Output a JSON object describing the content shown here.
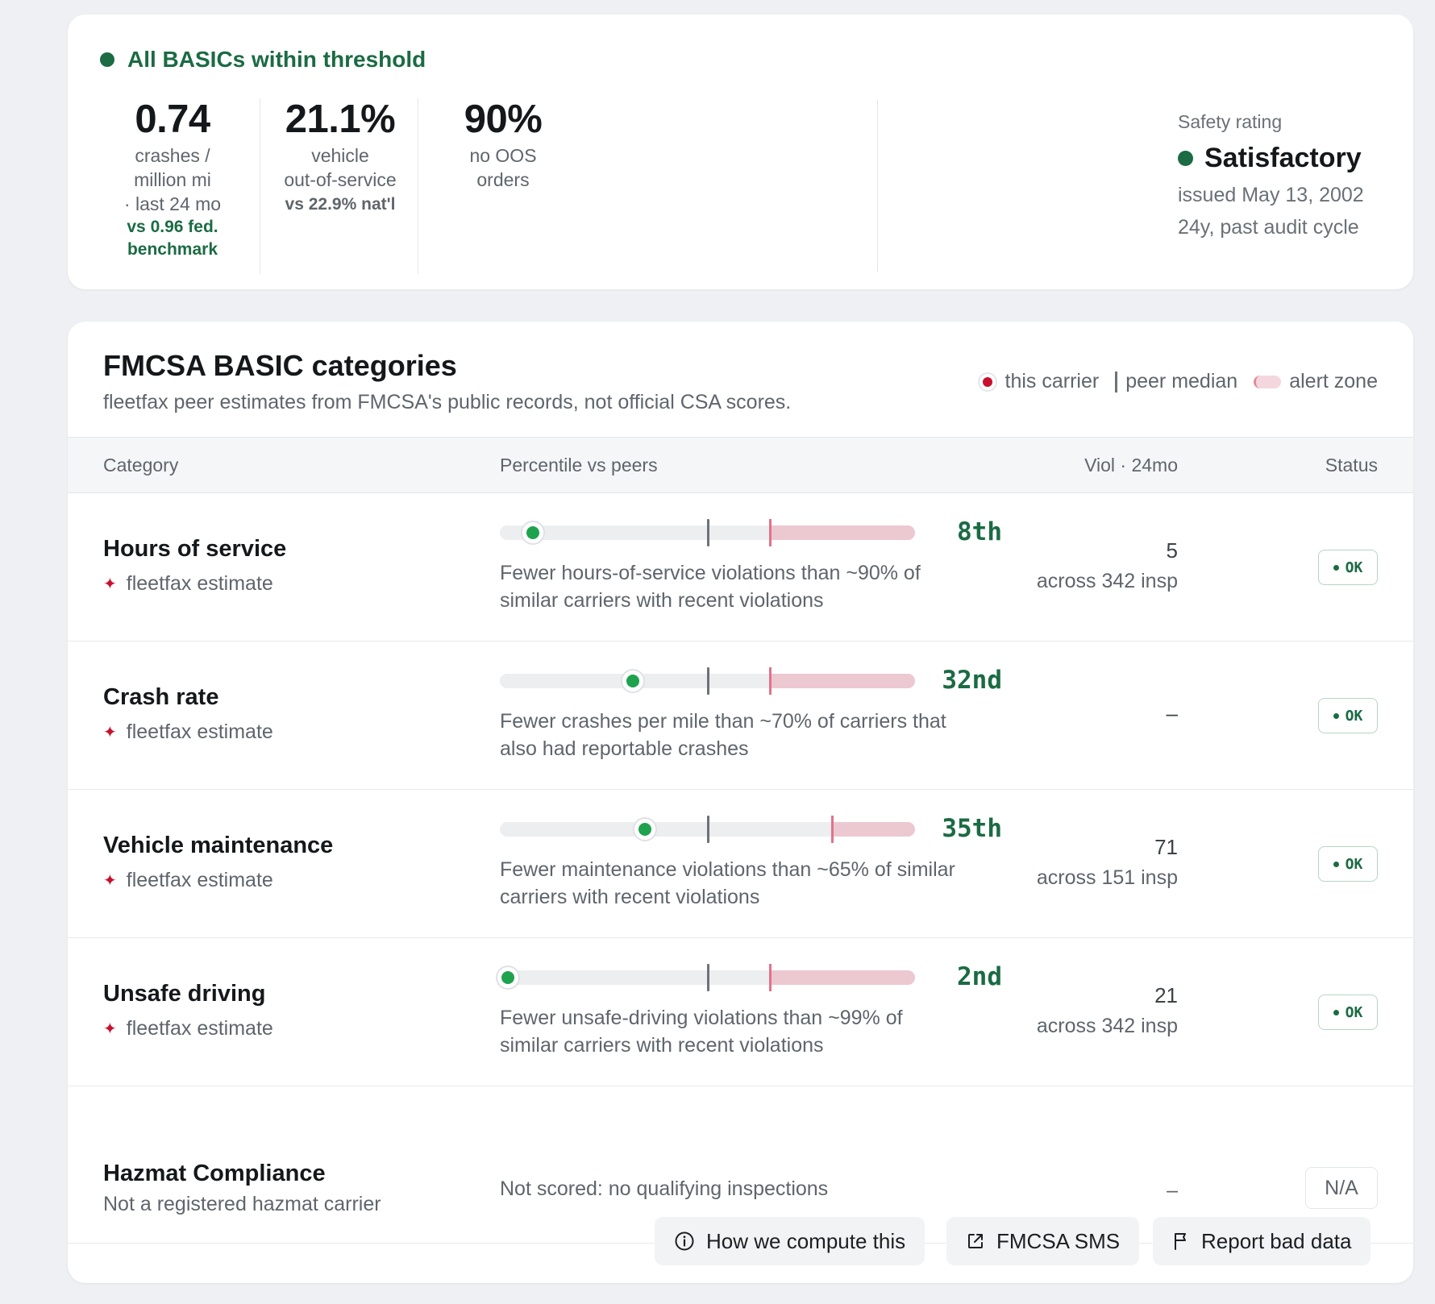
{
  "summary": {
    "status": "All BASICs within threshold",
    "stats": [
      {
        "value": "0.74",
        "label": [
          "crashes /",
          "million mi",
          "· last 24 mo"
        ],
        "compare": [
          "vs 0.96 fed.",
          "benchmark"
        ]
      },
      {
        "value": "21.1%",
        "label": [
          "vehicle",
          "out-of-service"
        ],
        "compare": [
          "vs 22.9% nat'l"
        ]
      },
      {
        "value": "90%",
        "label": [
          "no OOS",
          "orders"
        ],
        "compare": []
      }
    ],
    "safety": {
      "caption": "Safety rating",
      "rating": "Satisfactory",
      "issued": "issued May 13, 2002",
      "age": "24y, past audit cycle"
    }
  },
  "basics": {
    "title": "FMCSA BASIC categories",
    "subtitle": "fleetfax peer estimates from FMCSA's public records, not official CSA scores.",
    "legend": {
      "carrier": "this carrier",
      "median": "peer median",
      "alert": "alert zone"
    },
    "columns": {
      "category": "Category",
      "percentile": "Percentile vs peers",
      "viol": "Viol · 24mo",
      "status": "Status"
    },
    "rows": [
      {
        "name": "Hours of service",
        "estimate": "fleetfax estimate",
        "percentile": 8,
        "percentile_label": "8th",
        "median": 50,
        "alert_threshold": 65,
        "desc": [
          "Fewer hours-of-service violations than ~90% of",
          "similar carriers with recent violations"
        ],
        "viol_count": "5",
        "viol_insp": "across 342 insp",
        "status": "OK"
      },
      {
        "name": "Crash rate",
        "estimate": "fleetfax estimate",
        "percentile": 32,
        "percentile_label": "32nd",
        "median": 50,
        "alert_threshold": 65,
        "desc": [
          "Fewer crashes per mile than ~70% of carriers that",
          "also had reportable crashes"
        ],
        "viol_count": "–",
        "viol_insp": "",
        "status": "OK"
      },
      {
        "name": "Vehicle maintenance",
        "estimate": "fleetfax estimate",
        "percentile": 35,
        "percentile_label": "35th",
        "median": 50,
        "alert_threshold": 80,
        "desc": [
          "Fewer maintenance violations than ~65% of similar",
          "carriers with recent violations"
        ],
        "viol_count": "71",
        "viol_insp": "across 151 insp",
        "status": "OK"
      },
      {
        "name": "Unsafe driving",
        "estimate": "fleetfax estimate",
        "percentile": 2,
        "percentile_label": "2nd",
        "median": 50,
        "alert_threshold": 65,
        "desc": [
          "Fewer unsafe-driving violations than ~99% of",
          "similar carriers with recent violations"
        ],
        "viol_count": "21",
        "viol_insp": "across 342 insp",
        "status": "OK"
      }
    ],
    "hazmat": {
      "name": "Hazmat Compliance",
      "sub": "Not a registered hazmat carrier",
      "desc": "Not scored: no qualifying inspections",
      "viol": "–",
      "status": "N/A"
    },
    "buttons": {
      "how": "How we compute this",
      "sms": "FMCSA SMS",
      "report": "Report bad data"
    }
  },
  "colors": {
    "ok_green": "#1b6b43",
    "carrier_dot": "#1fa24e",
    "alert_pink": "#ecc8d1",
    "brand_red": "#c8102e"
  }
}
